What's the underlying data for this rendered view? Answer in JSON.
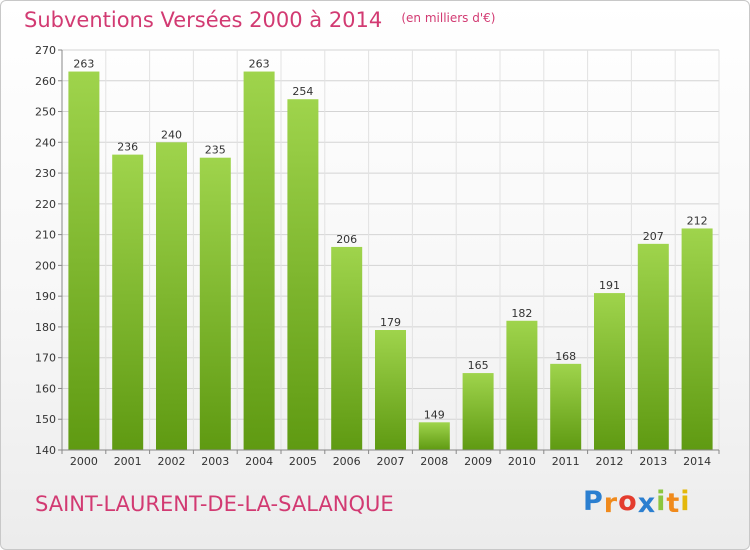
{
  "title": "Subventions Versées 2000 à 2014",
  "subtitle": "(en milliers d'€)",
  "commune": "SAINT-LAURENT-DE-LA-SALANQUE",
  "logo": {
    "letters": [
      "P",
      "r",
      "o",
      "x",
      "i",
      "t",
      "i"
    ],
    "colors": [
      "#2b7fd0",
      "#f08a1c",
      "#e43c2e",
      "#2b7fd0",
      "#8cc63f",
      "#f08a1c",
      "#e4b80a"
    ]
  },
  "colors": {
    "accent": "#d23a72",
    "bar_light": "#9fd44c",
    "bar_dark": "#5f9a12"
  },
  "chart_data": {
    "type": "bar",
    "title": "Subventions Versées 2000 à 2014",
    "subtitle": "(en milliers d'€)",
    "xlabel": "",
    "ylabel": "",
    "categories": [
      "2000",
      "2001",
      "2002",
      "2003",
      "2004",
      "2005",
      "2006",
      "2007",
      "2008",
      "2009",
      "2010",
      "2011",
      "2012",
      "2013",
      "2014"
    ],
    "values": [
      263,
      236,
      240,
      235,
      263,
      254,
      206,
      179,
      149,
      165,
      182,
      168,
      191,
      207,
      212
    ],
    "ylim": [
      140,
      270
    ],
    "yticks": [
      140,
      150,
      160,
      170,
      180,
      190,
      200,
      210,
      220,
      230,
      240,
      250,
      260,
      270
    ],
    "grid": true,
    "legend": "none"
  }
}
